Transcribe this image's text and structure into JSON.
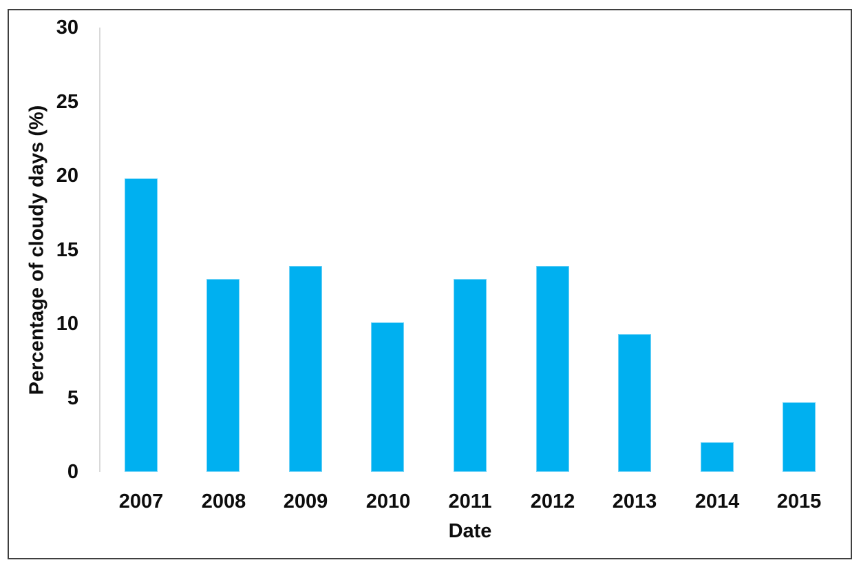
{
  "chart_data": {
    "type": "bar",
    "title": "",
    "categories": [
      "2007",
      "2008",
      "2009",
      "2010",
      "2011",
      "2012",
      "2013",
      "2014",
      "2015"
    ],
    "values": [
      19.8,
      13.0,
      13.9,
      10.1,
      13.0,
      13.9,
      9.3,
      2.0,
      4.7
    ],
    "xlabel": "Date",
    "ylabel": "Percentage of cloudy days (%)",
    "ylim": [
      0,
      30
    ],
    "yticks": [
      0,
      5,
      10,
      15,
      20,
      25,
      30
    ],
    "grid": false,
    "legend": "none",
    "bar_color": "#00b0f0",
    "axis_line_color": "#d9d9d9",
    "text_color": "#0d0d0d",
    "frame_border_color": "#3f3f3f"
  }
}
